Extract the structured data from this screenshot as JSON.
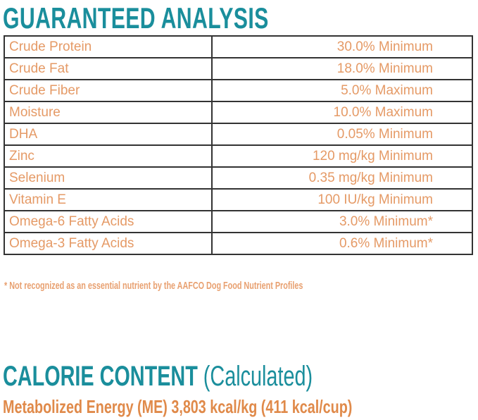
{
  "title": "GUARANTEED ANALYSIS",
  "rows": [
    {
      "name": "Crude Protein",
      "value": "30.0% Minimum"
    },
    {
      "name": "Crude Fat",
      "value": "18.0% Minimum"
    },
    {
      "name": "Crude Fiber",
      "value": "5.0%  Maximum"
    },
    {
      "name": "Moisture",
      "value": "10.0% Maximum"
    },
    {
      "name": "DHA",
      "value": "0.05% Minimum"
    },
    {
      "name": "Zinc",
      "value": "120 mg/kg Minimum"
    },
    {
      "name": "Selenium",
      "value": "0.35 mg/kg Minimum"
    },
    {
      "name": "Vitamin E",
      "value": "100 IU/kg Minimum"
    },
    {
      "name": "Omega-6 Fatty Acids",
      "value": "3.0% Minimum*"
    },
    {
      "name": "Omega-3 Fatty Acids",
      "value": "0.6% Minimum*"
    }
  ],
  "footnote": "* Not recognized as an essential nutrient by the AAFCO Dog Food Nutrient Profiles",
  "calorie": {
    "title": "CALORIE CONTENT",
    "subtitle": "(Calculated)",
    "energy": "Metabolized Energy (ME) 3,803 kcal/kg (411 kcal/cup)"
  },
  "colors": {
    "teal": "#1a8e9c",
    "orange": "#e59a66"
  }
}
